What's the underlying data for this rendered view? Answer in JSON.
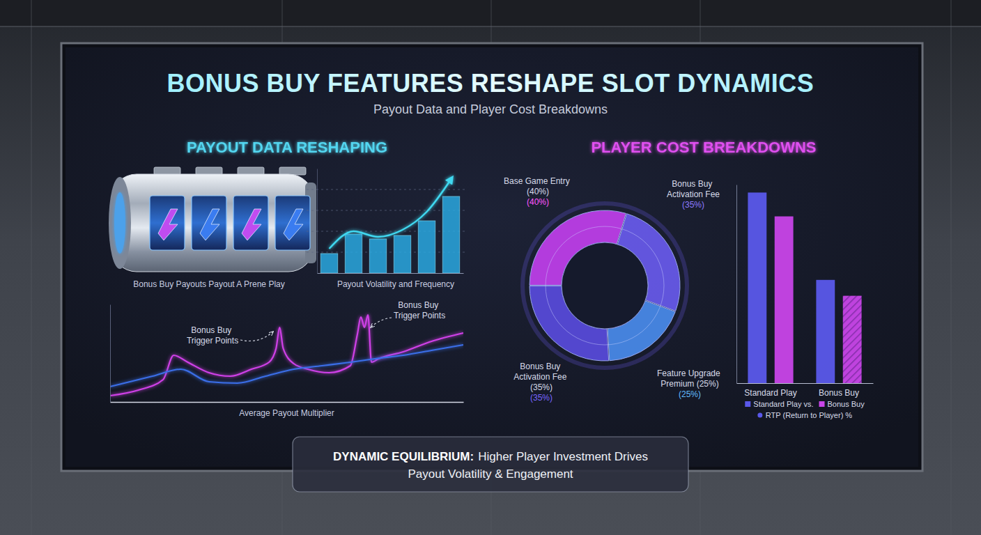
{
  "title": "BONUS BUY FEATURES RESHAPE SLOT DYNAMICS",
  "subtitle": "Payout Data and Player Cost Breakdowns",
  "sections": [
    {
      "title": "PAYOUT DATA RESHAPING",
      "color": "#52d6f0"
    },
    {
      "title": "PLAYER COST BREAKDOWNS",
      "color": "#e050f0"
    }
  ],
  "footer": {
    "heading": "DYNAMIC EQUILIBRIUM:",
    "text_lines": [
      "Higher Player Investment Drives",
      "Payout Volatility & Engagement"
    ]
  },
  "chart_data": [
    {
      "type": "bar",
      "categories": [
        null,
        null,
        null,
        null,
        null,
        null
      ],
      "series": [
        {
          "type": "bar",
          "color": "#2aa8e0",
          "values": [
            28,
            56,
            49,
            54,
            75,
            110
          ]
        },
        {
          "type": "line",
          "color": "#3fd8f0",
          "values": [
            35,
            60,
            52,
            62,
            88,
            135
          ]
        }
      ],
      "ylim": [
        0,
        150
      ],
      "yticks": [
        30,
        60,
        90,
        120
      ],
      "grid": true,
      "tick_labels": false,
      "annotations": [
        "Bonus Buy Payouts Payout A Prene Play",
        "Payout Volatility and Frequency"
      ]
    },
    {
      "type": "line",
      "xlim": [
        0,
        100
      ],
      "ylim": [
        0,
        140
      ],
      "tick_labels": false,
      "x_label": "Average Payout Multiplier",
      "annotations": [
        "Bonus Buy Trigger Points",
        "Bonus Buy Trigger Points"
      ],
      "series": [
        {
          "color": "#d040e8",
          "x": [
            0,
            8,
            15,
            18,
            22,
            28,
            34,
            40,
            45,
            47,
            48,
            49,
            52,
            56,
            62,
            68,
            70,
            71,
            72,
            73,
            74,
            76,
            83,
            91,
            100
          ],
          "values": [
            9,
            17,
            32,
            67,
            57,
            42,
            37,
            47,
            57,
            77,
            107,
            77,
            55,
            47,
            42,
            52,
            97,
            122,
            107,
            125,
            57,
            62,
            72,
            87,
            99
          ]
        },
        {
          "color": "#3a6ee8",
          "x": [
            0,
            12,
            20,
            28,
            36,
            44,
            52,
            60,
            68,
            75,
            83,
            91,
            100
          ],
          "values": [
            22,
            37,
            47,
            29,
            27,
            37,
            47,
            52,
            57,
            62,
            67,
            74,
            82
          ]
        }
      ]
    },
    {
      "type": "pie",
      "categories": [
        "Base Game Entry (40%)",
        "Bonus Buy Activation Fee",
        "Feature Upgrade Premium (25%)",
        "Bonus Buy Activation Fee (35%)"
      ],
      "values": [
        40,
        35,
        25,
        35
      ],
      "value_labels": [
        "(40%)",
        "(35%)",
        "(25%)",
        "(35%)"
      ],
      "colors": [
        "#c440f0",
        "#6a5cf0",
        "#4a8ef0",
        "#5a4ce0"
      ],
      "data_labels": true
    },
    {
      "type": "bar",
      "categories": [
        "Standard Play",
        "Bonus Buy"
      ],
      "series": [
        {
          "name": "Standard Play vs.",
          "color": "#5a58ea",
          "values": [
            96,
            52
          ]
        },
        {
          "name": "Bonus Buy",
          "color": "#c845e8",
          "values": [
            84,
            44
          ]
        }
      ],
      "ylim": [
        0,
        100
      ],
      "tick_labels": "x",
      "legend": "bottom",
      "annotations": [
        "RTP (Return to Player) %"
      ]
    }
  ]
}
